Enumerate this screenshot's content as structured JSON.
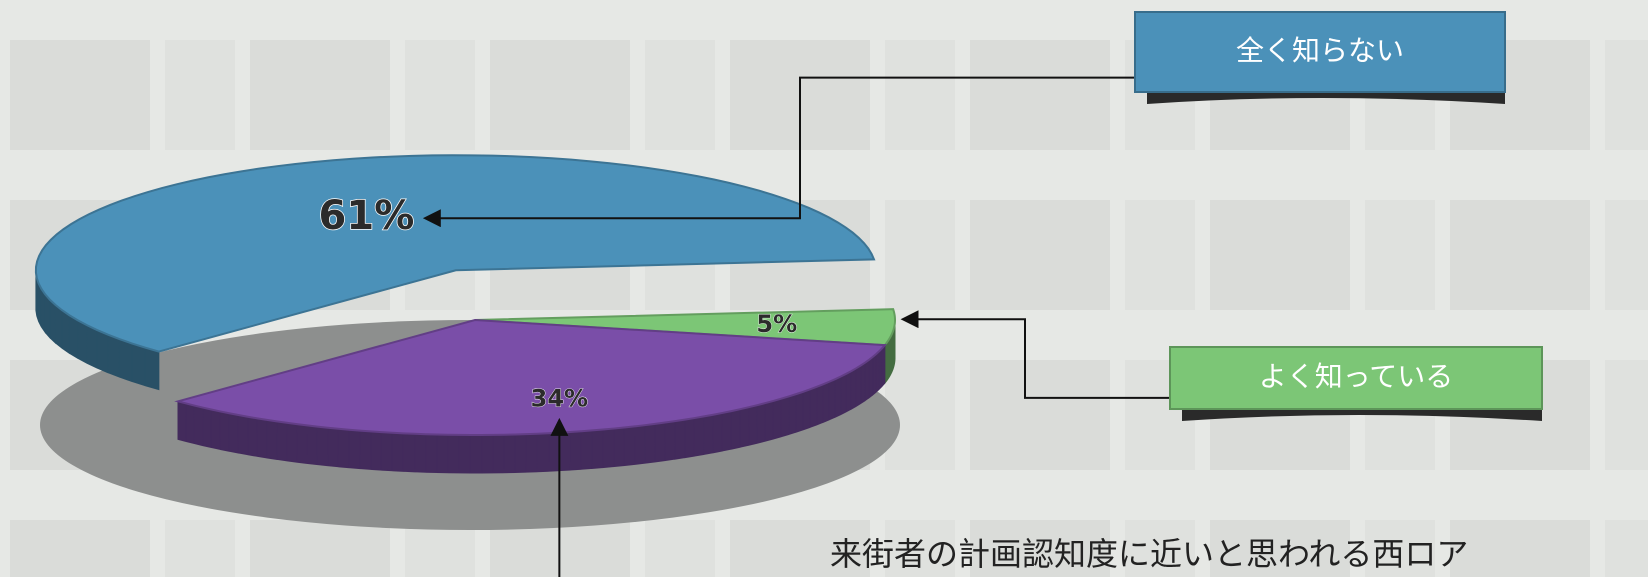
{
  "chart_data": {
    "type": "pie",
    "categories": [
      "全く知らない",
      "よく知っている",
      null
    ],
    "values": [
      61,
      5,
      34
    ],
    "value_labels": [
      "61%",
      "5%",
      "34%"
    ],
    "colors": [
      "#4b91b9",
      "#7cc676",
      "#7a4ea8"
    ],
    "annotation": "来街者の計画認知度に近いと思われる西ロア"
  }
}
